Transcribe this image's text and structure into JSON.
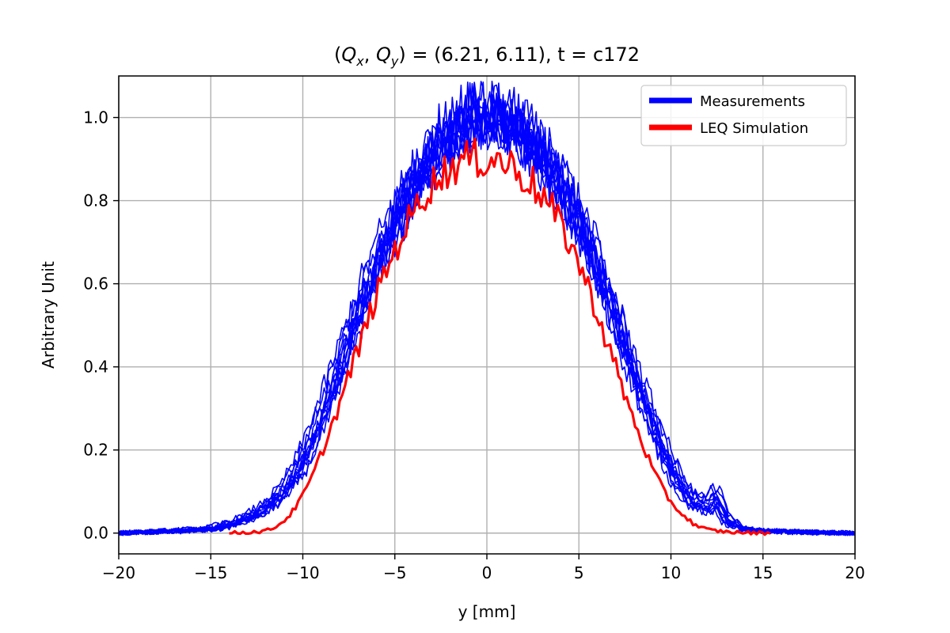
{
  "chart_data": {
    "type": "line",
    "title": {
      "prefix": "(",
      "q1_base": "Q",
      "q1_sub": "x",
      "sep": ", ",
      "q2_base": "Q",
      "q2_sub": "y",
      "suffix": ") = (6.21, 6.11), t = c172"
    },
    "xlabel": "y [mm]",
    "ylabel": "Arbitrary Unit",
    "xlim": [
      -20,
      20
    ],
    "ylim": [
      -0.05,
      1.1
    ],
    "xticks": [
      -20,
      -15,
      -10,
      -5,
      0,
      5,
      10,
      15,
      20
    ],
    "yticks": [
      0.0,
      0.2,
      0.4,
      0.6,
      0.8,
      1.0
    ],
    "xtick_labels": [
      "−20",
      "−15",
      "−10",
      "−5",
      "0",
      "5",
      "10",
      "15",
      "20"
    ],
    "ytick_labels": [
      "0.0",
      "0.2",
      "0.4",
      "0.6",
      "0.8",
      "1.0"
    ],
    "grid": true,
    "legend_position": "top-right",
    "series": [
      {
        "name": "Measurements",
        "color": "#0000ff",
        "traces": [
          {
            "x": [
              -20,
              -17,
              -15,
              -14,
              -13,
              -12,
              -11,
              -10,
              -9,
              -8,
              -7,
              -6,
              -5,
              -4,
              -3,
              -2,
              -1,
              0,
              1,
              2,
              3,
              4,
              5,
              6,
              7,
              8,
              9,
              10,
              11,
              12,
              12.5,
              13,
              14,
              15,
              17,
              20
            ],
            "y": [
              0.0,
              0.005,
              0.01,
              0.02,
              0.035,
              0.06,
              0.1,
              0.17,
              0.27,
              0.39,
              0.52,
              0.64,
              0.74,
              0.83,
              0.9,
              0.96,
              0.99,
              1.0,
              0.99,
              0.96,
              0.91,
              0.84,
              0.75,
              0.64,
              0.51,
              0.38,
              0.26,
              0.15,
              0.08,
              0.06,
              0.09,
              0.03,
              0.01,
              0.005,
              0.002,
              0.0
            ]
          },
          {
            "x": [
              -20,
              -17,
              -15,
              -14,
              -13,
              -12,
              -11,
              -10,
              -9,
              -8,
              -7,
              -6,
              -5,
              -4,
              -3,
              -2,
              -1,
              0,
              1,
              2,
              3,
              4,
              5,
              6,
              7,
              8,
              9,
              10,
              11,
              12,
              12.5,
              13,
              14,
              15,
              17,
              20
            ],
            "y": [
              0.0,
              0.004,
              0.008,
              0.015,
              0.03,
              0.05,
              0.09,
              0.15,
              0.25,
              0.37,
              0.5,
              0.62,
              0.72,
              0.81,
              0.88,
              0.94,
              0.97,
              0.98,
              0.97,
              0.94,
              0.89,
              0.82,
              0.73,
              0.62,
              0.5,
              0.37,
              0.25,
              0.14,
              0.07,
              0.05,
              0.07,
              0.025,
              0.008,
              0.004,
              0.002,
              0.0
            ]
          },
          {
            "x": [
              -20,
              -17,
              -15,
              -14,
              -13,
              -12,
              -11,
              -10,
              -9,
              -8,
              -7,
              -6,
              -5,
              -4,
              -3,
              -2,
              -1,
              0,
              1,
              2,
              3,
              4,
              5,
              6,
              7,
              8,
              9,
              10,
              11,
              12,
              12.5,
              13,
              14,
              15,
              17,
              20
            ],
            "y": [
              0.0,
              0.006,
              0.012,
              0.025,
              0.04,
              0.07,
              0.11,
              0.19,
              0.3,
              0.42,
              0.55,
              0.67,
              0.77,
              0.86,
              0.93,
              0.99,
              1.02,
              1.03,
              1.02,
              0.99,
              0.94,
              0.87,
              0.78,
              0.67,
              0.54,
              0.41,
              0.29,
              0.18,
              0.1,
              0.08,
              0.11,
              0.04,
              0.012,
              0.006,
              0.003,
              0.0
            ]
          }
        ]
      },
      {
        "name": "LEQ Simulation",
        "color": "#ff0000",
        "traces": [
          {
            "x": [
              -14,
              -13,
              -12,
              -11.5,
              -11,
              -10.5,
              -10,
              -9.5,
              -9,
              -8.5,
              -8,
              -7.5,
              -7,
              -6.5,
              -6,
              -5.5,
              -5,
              -4.5,
              -4,
              -3.5,
              -3,
              -2.5,
              -2,
              -1.5,
              -1,
              -0.5,
              0,
              0.5,
              1,
              1.5,
              2,
              2.5,
              3,
              3.5,
              4,
              4.5,
              5,
              5.5,
              6,
              6.5,
              7,
              7.5,
              8,
              8.5,
              9,
              9.5,
              10,
              10.5,
              11,
              11.5,
              12,
              13,
              14,
              15.5
            ],
            "y": [
              0.0,
              0.002,
              0.005,
              0.015,
              0.03,
              0.055,
              0.09,
              0.135,
              0.19,
              0.25,
              0.31,
              0.38,
              0.44,
              0.51,
              0.57,
              0.63,
              0.68,
              0.73,
              0.77,
              0.81,
              0.84,
              0.86,
              0.88,
              0.89,
              0.9,
              0.9,
              0.9,
              0.9,
              0.89,
              0.88,
              0.86,
              0.84,
              0.81,
              0.78,
              0.74,
              0.7,
              0.65,
              0.59,
              0.53,
              0.46,
              0.4,
              0.33,
              0.27,
              0.21,
              0.155,
              0.11,
              0.075,
              0.05,
              0.03,
              0.015,
              0.008,
              0.003,
              0.001,
              0.0
            ]
          }
        ]
      }
    ]
  }
}
